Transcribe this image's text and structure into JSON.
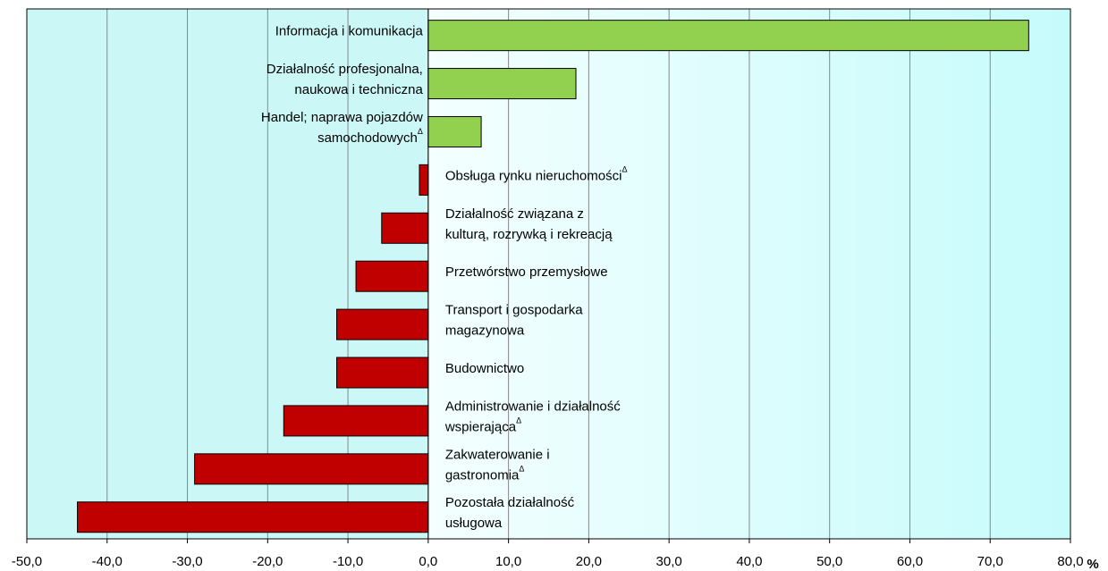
{
  "chart_data": {
    "type": "hbar",
    "categories": [
      [
        "Informacja i komunikacja"
      ],
      [
        "Działalność profesjonalna,",
        "naukowa i techniczna"
      ],
      [
        "Handel; naprawa pojazdów",
        "samochodowychΔ"
      ],
      [
        "Obsługa rynku nieruchomościΔ"
      ],
      [
        "Działalność związana z",
        "kulturą, rozrywką i rekreacją"
      ],
      [
        "Przetwórstwo przemysłowe"
      ],
      [
        "Transport i gospodarka",
        "magazynowa"
      ],
      [
        "Budownictwo"
      ],
      [
        "Administrowanie i działalność",
        "wspierającaΔ"
      ],
      [
        "Zakwaterowanie i",
        "gastronomiaΔ"
      ],
      [
        "Pozostała działalność",
        "usługowa"
      ]
    ],
    "values": [
      74.8,
      18.4,
      6.6,
      -1.1,
      -5.8,
      -9.0,
      -11.4,
      -11.4,
      -18.0,
      -29.1,
      -43.7
    ],
    "positive_color": "#92d050",
    "negative_color": "#c00000",
    "x_label": "%",
    "xlim": [
      -50,
      80
    ],
    "xticks": [
      {
        "value": -50,
        "label": "-50,0"
      },
      {
        "value": -40,
        "label": "-40,0"
      },
      {
        "value": -30,
        "label": "-30,0"
      },
      {
        "value": -20,
        "label": "-20,0"
      },
      {
        "value": -10,
        "label": "-10,0"
      },
      {
        "value": 0,
        "label": "0,0"
      },
      {
        "value": 10,
        "label": "10,0"
      },
      {
        "value": 20,
        "label": "20,0"
      },
      {
        "value": 30,
        "label": "30,0"
      },
      {
        "value": 40,
        "label": "40,0"
      },
      {
        "value": 50,
        "label": "50,0"
      },
      {
        "value": 60,
        "label": "60,0"
      },
      {
        "value": 70,
        "label": "70,0"
      },
      {
        "value": 80,
        "label": "80,0"
      }
    ],
    "grid": true
  }
}
